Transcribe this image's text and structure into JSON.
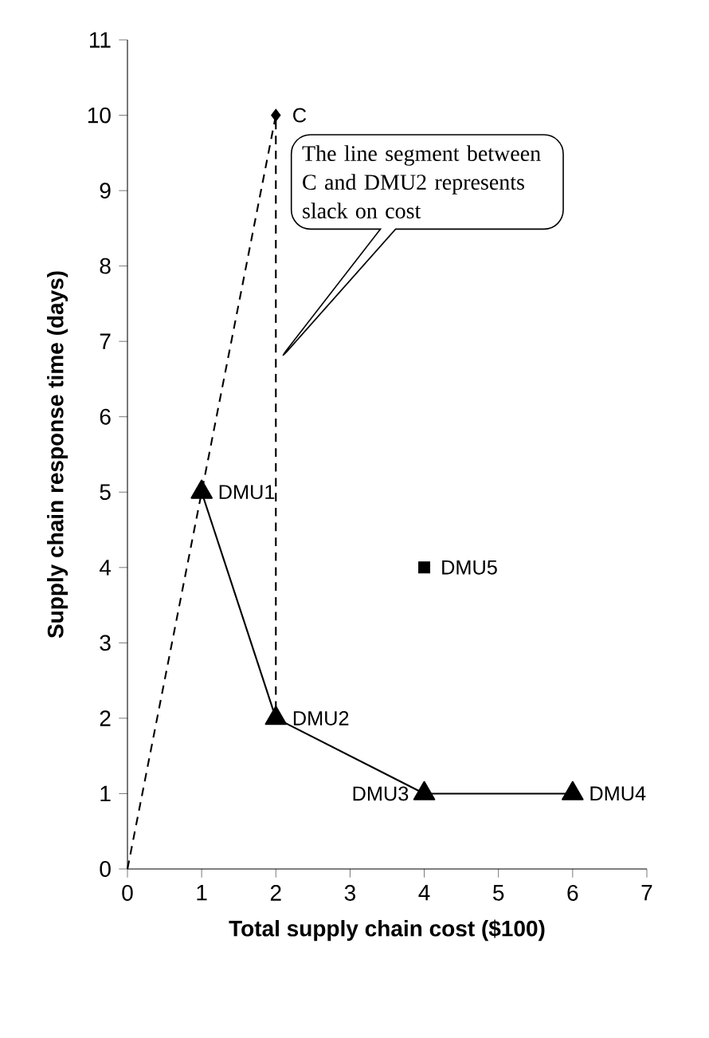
{
  "chart_data": {
    "type": "line",
    "xlabel": "Total supply chain cost ($100)",
    "ylabel": "Supply chain response time (days)",
    "xlim": [
      0,
      7
    ],
    "xticks": [
      0,
      1,
      2,
      3,
      4,
      5,
      6,
      7
    ],
    "ylim": [
      0,
      11
    ],
    "yticks": [
      0,
      1,
      2,
      3,
      4,
      5,
      6,
      7,
      8,
      9,
      10,
      11
    ],
    "grid": false,
    "series": [
      {
        "color": "#000000",
        "marker": "triangle",
        "line_style": "solid",
        "x": [
          1,
          2,
          4,
          6
        ],
        "values": [
          5,
          2,
          1,
          1
        ]
      },
      {
        "color": "#000000",
        "marker": "none",
        "line_style": "dashed",
        "x": [
          0,
          1,
          2,
          2
        ],
        "values": [
          0,
          5,
          10,
          2
        ]
      },
      {
        "type": "scatter",
        "color": "#000000",
        "marker": "square",
        "x": [
          4
        ],
        "values": [
          4
        ]
      },
      {
        "type": "scatter",
        "color": "#000000",
        "marker": "diamond",
        "x": [
          2
        ],
        "values": [
          10
        ]
      }
    ],
    "annotations": [
      {
        "text": "DMU1",
        "x": 1,
        "y": 5
      },
      {
        "text": "DMU2",
        "x": 2,
        "y": 2
      },
      {
        "text": "DMU3",
        "x": 4,
        "y": 1
      },
      {
        "text": "DMU4",
        "x": 6,
        "y": 1
      },
      {
        "text": "DMU5",
        "x": 4,
        "y": 4
      },
      {
        "text": "C",
        "x": 2,
        "y": 10
      },
      "The line segment between C and DMU2 represents slack on cost"
    ]
  }
}
